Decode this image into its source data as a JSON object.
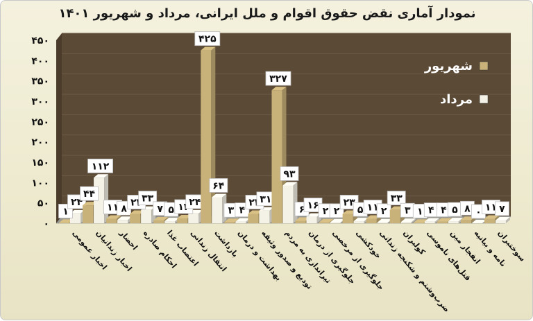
{
  "chart_data": {
    "type": "bar",
    "title": "نمودار آماری نقض حقوق اقوام و ملل ایرانی، مرداد و شهریور ۱۴۰۱",
    "xlabel": "",
    "ylabel": "",
    "ylim": [
      0,
      450
    ],
    "yticks": [
      0,
      50,
      100,
      150,
      200,
      250,
      300,
      350,
      400,
      450
    ],
    "ytick_labels": [
      "۰",
      "۵۰",
      "۱۰۰",
      "۱۵۰",
      "۲۰۰",
      "۲۵۰",
      "۳۰۰",
      "۳۵۰",
      "۴۰۰",
      "۴۵۰"
    ],
    "grid": true,
    "legend_position": "top-right",
    "categories": [
      "اخبار عمومی",
      "اخبار زندانیان",
      "احضار",
      "احکام صادره",
      "اعتصاب غذا",
      "انتقال زندانی",
      "بازداشت",
      "بهداشت و درمان",
      "تودیع و صدور وثیقه",
      "تیراندازی به مردم",
      "جلوگیری از درمان",
      "جلوگیری از مرخصی",
      "خودکشی",
      "ضرب‌وشتم و شکنجه زندانی",
      "کولبران",
      "قتل‌های ناموسی",
      "انفجار مین",
      "نامه و بیانیه",
      "سوختبران"
    ],
    "series": [
      {
        "name": "شهریور",
        "color": "#c9b27a",
        "values": [
          1,
          44,
          11,
          23,
          7,
          12,
          425,
          3,
          23,
          327,
          6,
          2,
          23,
          11,
          33,
          1,
          4,
          8,
          11
        ],
        "labels": [
          "۱",
          "۴۴",
          "۱۱",
          "۲۳",
          "۷",
          "۱۲",
          "۴۲۵",
          "۳",
          "۲۳",
          "۳۲۷",
          "۶",
          "۲",
          "۲۳",
          "۱۱",
          "۳۳",
          "۱",
          "۴",
          "۸",
          "۱۱"
        ]
      },
      {
        "name": "مرداد",
        "color": "#f4f1e6",
        "values": [
          24,
          112,
          8,
          33,
          5,
          24,
          64,
          4,
          31,
          93,
          16,
          2,
          5,
          2,
          3,
          4,
          5,
          0,
          7
        ],
        "labels": [
          "۲۴",
          "۱۱۲",
          "۸",
          "۳۳",
          "۵",
          "۲۴",
          "۶۴",
          "۴",
          "۳۱",
          "۹۳",
          "۱۶",
          "۲",
          "۵",
          "۲",
          "۳",
          "۴",
          "۵",
          "۰",
          "۷"
        ]
      }
    ],
    "colors": {
      "plot_back": "#5b4a36",
      "plot_floor": "#9b9b93",
      "axis_text": "#111111"
    }
  }
}
